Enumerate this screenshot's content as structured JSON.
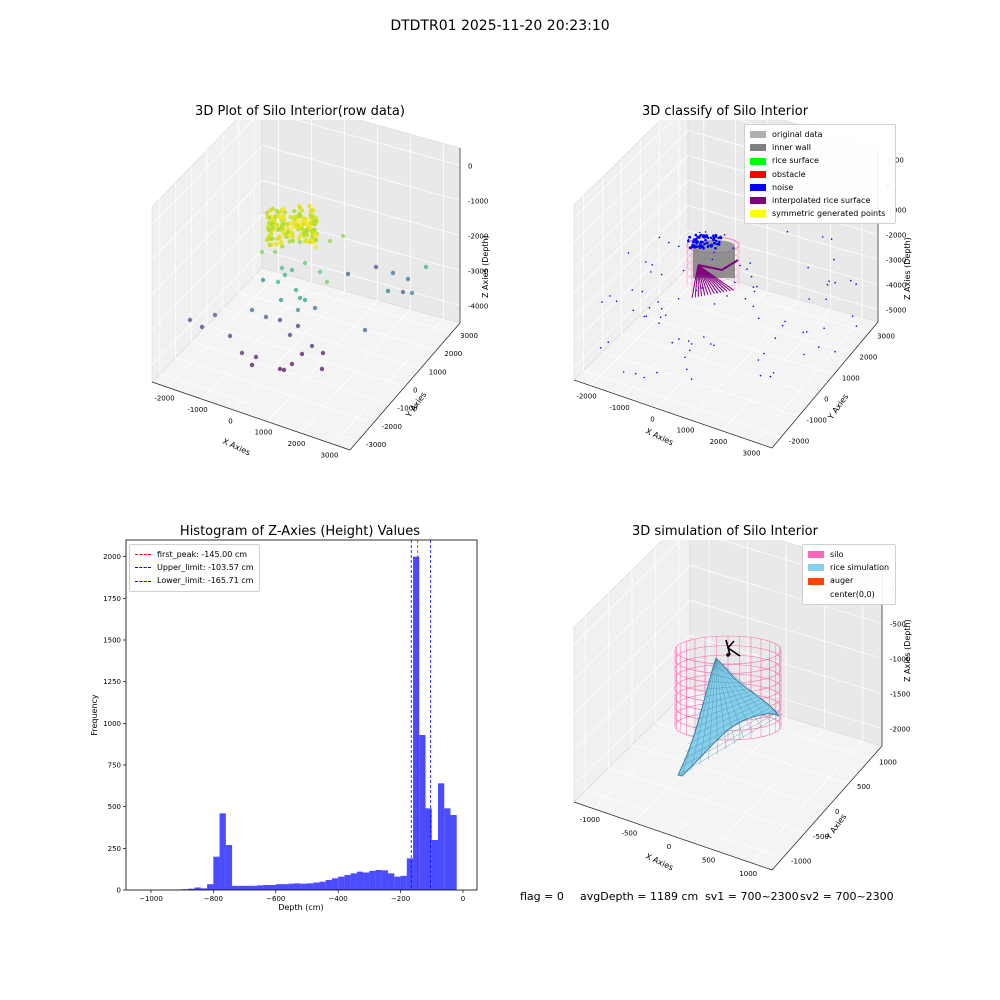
{
  "suptitle": "DTDTR01 2025-11-20 20:23:10",
  "panels": {
    "raw": {
      "title": "3D Plot of Silo Interior(row data)",
      "xlabel": "X Axies",
      "ylabel": "Y Axies",
      "zlabel": "Z Axies (Depth)",
      "xticks": [
        "-2000",
        "-1000",
        "0",
        "1000",
        "2000",
        "3000"
      ],
      "yticks": [
        "-3000",
        "-2000",
        "-1000",
        "0",
        "1000",
        "2000",
        "3000"
      ],
      "zticks": [
        "0",
        "-1000",
        "-2000",
        "-3000",
        "-4000"
      ]
    },
    "classify": {
      "title": "3D classify of Silo Interior",
      "xlabel": "X Axies",
      "ylabel": "Y Axies",
      "zlabel": "Z Axies (Depth)",
      "xticks": [
        "-2000",
        "-1000",
        "0",
        "1000",
        "2000",
        "3000"
      ],
      "yticks": [
        "-2000",
        "-1000",
        "0",
        "1000",
        "2000",
        "3000"
      ],
      "zticks": [
        "1000",
        "0",
        "-1000",
        "-2000",
        "-3000",
        "-4000",
        "-5000"
      ],
      "legend": [
        {
          "label": "original data",
          "color": "#b0b0b0"
        },
        {
          "label": "inner wall",
          "color": "#808080"
        },
        {
          "label": "rice surface",
          "color": "#00ff00"
        },
        {
          "label": "obstacle",
          "color": "#ff0000"
        },
        {
          "label": "noise",
          "color": "#0000ff"
        },
        {
          "label": "interpolated rice surface",
          "color": "#800080"
        },
        {
          "label": "symmetric generated points",
          "color": "#ffff00"
        }
      ]
    },
    "simulation": {
      "title": "3D simulation of Silo Interior",
      "xlabel": "X Axies",
      "ylabel": "Y Axies",
      "zlabel": "Z Axies (Depth)",
      "xticks": [
        "-1000",
        "-500",
        "0",
        "500",
        "1000"
      ],
      "yticks": [
        "-1000",
        "-500",
        "0",
        "500",
        "1000"
      ],
      "zticks": [
        "0",
        "-500",
        "-1000",
        "-1500",
        "-2000"
      ],
      "legend": [
        {
          "label": "silo",
          "color": "#ff69b4"
        },
        {
          "label": "rice simulation",
          "color": "#87ceeb"
        },
        {
          "label": "auger",
          "color": "#ff4500"
        },
        {
          "label": "center(0,0)",
          "color": "#ffffff"
        }
      ]
    }
  },
  "footer": {
    "flag": "flag = 0",
    "avg": "avgDepth = 1189 cm",
    "sv1": "sv1 = 700~2300",
    "sv2": "sv2 = 700~2300"
  },
  "chart_data": {
    "type": "bar",
    "title": "Histogram of Z-Axies (Height) Values",
    "xlabel": "Depth (cm)",
    "ylabel": "Frequency",
    "xlim": [
      -1080,
      45
    ],
    "ylim": [
      0,
      2100
    ],
    "xticks": [
      -1000,
      -800,
      -600,
      -400,
      -200,
      0
    ],
    "yticks": [
      0,
      250,
      500,
      750,
      1000,
      1250,
      1500,
      1750,
      2000
    ],
    "bar_color": "#0000ff",
    "bin_edges_start": -1020,
    "bin_width": 20,
    "values": [
      0,
      0,
      0,
      2,
      1,
      3,
      5,
      8,
      15,
      10,
      35,
      200,
      460,
      270,
      25,
      25,
      25,
      25,
      28,
      30,
      30,
      35,
      35,
      38,
      40,
      38,
      40,
      45,
      50,
      60,
      70,
      80,
      90,
      100,
      110,
      105,
      115,
      120,
      118,
      100,
      80,
      85,
      190,
      2000,
      930,
      490,
      300,
      640,
      490,
      450
    ],
    "vlines": [
      {
        "label": "first_peak: -145.00 cm",
        "x": -145.0,
        "color": "#ff0000"
      },
      {
        "label": "Upper_limit: -103.57 cm",
        "x": -103.57,
        "color": "#0000ff"
      },
      {
        "label": "Lower_limit: -165.71 cm",
        "x": -165.71,
        "color": "#0000ff"
      }
    ],
    "legend_position": "upper-left"
  }
}
